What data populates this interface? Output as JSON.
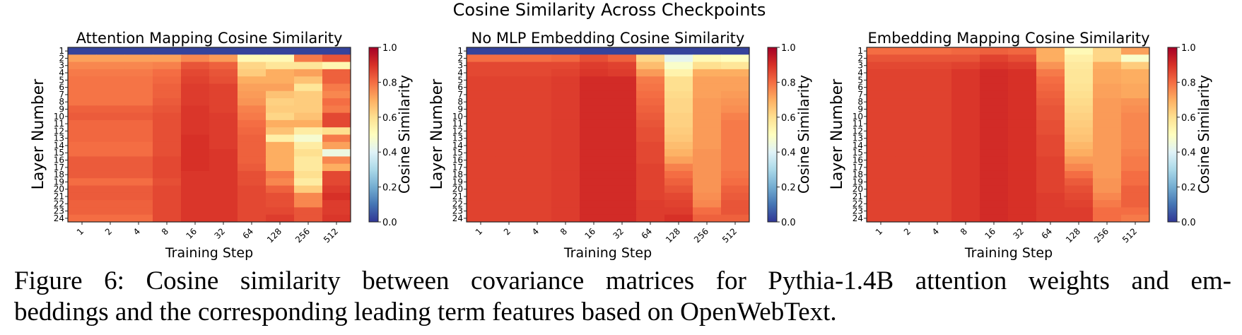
{
  "figure_title": "Cosine Similarity Across Checkpoints",
  "caption": {
    "line1": "Figure 6: Cosine similarity between covariance matrices for Pythia-1.4B attention weights and em-",
    "line2": "beddings and the corresponding leading term features based on OpenWebText."
  },
  "chart_data": [
    {
      "type": "heatmap",
      "title": "Attention Mapping Cosine Similarity",
      "xlabel": "Training Step",
      "ylabel": "Layer Number",
      "colorbar_label": "Cosine Similarity",
      "colormap": "RdYlBu_r",
      "vmin": 0.0,
      "vmax": 1.0,
      "colorbar_ticks": [
        "0.0",
        "0.2",
        "0.4",
        "0.6",
        "0.8",
        "1.0"
      ],
      "x": [
        "1",
        "2",
        "4",
        "8",
        "16",
        "32",
        "64",
        "128",
        "256",
        "512"
      ],
      "y": [
        "1",
        "2",
        "3",
        "4",
        "5",
        "6",
        "7",
        "8",
        "9",
        "10",
        "11",
        "12",
        "13",
        "14",
        "15",
        "16",
        "17",
        "18",
        "19",
        "20",
        "21",
        "22",
        "23",
        "24"
      ],
      "z": [
        [
          0.02,
          0.02,
          0.02,
          0.02,
          0.02,
          0.02,
          0.02,
          0.02,
          0.02,
          0.02
        ],
        [
          0.72,
          0.72,
          0.72,
          0.72,
          0.76,
          0.73,
          0.52,
          0.52,
          0.78,
          0.84
        ],
        [
          0.76,
          0.76,
          0.76,
          0.77,
          0.84,
          0.82,
          0.62,
          0.58,
          0.58,
          0.53
        ],
        [
          0.78,
          0.78,
          0.78,
          0.8,
          0.86,
          0.84,
          0.64,
          0.7,
          0.72,
          0.82
        ],
        [
          0.79,
          0.79,
          0.79,
          0.81,
          0.87,
          0.85,
          0.7,
          0.7,
          0.66,
          0.82
        ],
        [
          0.79,
          0.79,
          0.79,
          0.82,
          0.88,
          0.87,
          0.72,
          0.72,
          0.58,
          0.78
        ],
        [
          0.79,
          0.79,
          0.79,
          0.82,
          0.88,
          0.87,
          0.73,
          0.66,
          0.64,
          0.76
        ],
        [
          0.79,
          0.79,
          0.79,
          0.83,
          0.88,
          0.87,
          0.74,
          0.63,
          0.64,
          0.8
        ],
        [
          0.82,
          0.82,
          0.82,
          0.84,
          0.89,
          0.87,
          0.77,
          0.64,
          0.64,
          0.78
        ],
        [
          0.83,
          0.83,
          0.83,
          0.85,
          0.89,
          0.88,
          0.78,
          0.62,
          0.66,
          0.86
        ],
        [
          0.81,
          0.81,
          0.81,
          0.85,
          0.89,
          0.88,
          0.8,
          0.7,
          0.7,
          0.86
        ],
        [
          0.81,
          0.81,
          0.81,
          0.85,
          0.89,
          0.88,
          0.81,
          0.66,
          0.56,
          0.6
        ],
        [
          0.81,
          0.81,
          0.81,
          0.85,
          0.9,
          0.88,
          0.82,
          0.55,
          0.47,
          0.78
        ],
        [
          0.8,
          0.8,
          0.8,
          0.85,
          0.9,
          0.88,
          0.82,
          0.7,
          0.56,
          0.72
        ],
        [
          0.8,
          0.8,
          0.8,
          0.85,
          0.9,
          0.89,
          0.82,
          0.7,
          0.6,
          0.44
        ],
        [
          0.83,
          0.83,
          0.83,
          0.86,
          0.9,
          0.89,
          0.82,
          0.7,
          0.57,
          0.76
        ],
        [
          0.83,
          0.83,
          0.83,
          0.86,
          0.9,
          0.89,
          0.83,
          0.7,
          0.57,
          0.7
        ],
        [
          0.83,
          0.83,
          0.83,
          0.86,
          0.89,
          0.89,
          0.85,
          0.78,
          0.6,
          0.86
        ],
        [
          0.8,
          0.8,
          0.8,
          0.85,
          0.89,
          0.89,
          0.85,
          0.76,
          0.56,
          0.86
        ],
        [
          0.83,
          0.83,
          0.83,
          0.86,
          0.89,
          0.89,
          0.86,
          0.82,
          0.64,
          0.88
        ],
        [
          0.83,
          0.83,
          0.83,
          0.86,
          0.89,
          0.89,
          0.86,
          0.85,
          0.76,
          0.9
        ],
        [
          0.82,
          0.82,
          0.82,
          0.86,
          0.89,
          0.89,
          0.86,
          0.85,
          0.76,
          0.88
        ],
        [
          0.82,
          0.82,
          0.82,
          0.86,
          0.89,
          0.89,
          0.86,
          0.86,
          0.84,
          0.88
        ],
        [
          0.8,
          0.8,
          0.8,
          0.86,
          0.89,
          0.89,
          0.86,
          0.88,
          0.84,
          0.89
        ]
      ]
    },
    {
      "type": "heatmap",
      "title": "No MLP Embedding Cosine Similarity",
      "xlabel": "Training Step",
      "ylabel": "Layer Number",
      "colorbar_label": "Cosine Similarity",
      "colormap": "RdYlBu_r",
      "vmin": 0.0,
      "vmax": 1.0,
      "colorbar_ticks": [
        "0.0",
        "0.2",
        "0.4",
        "0.6",
        "0.8",
        "1.0"
      ],
      "x": [
        "1",
        "2",
        "4",
        "8",
        "16",
        "32",
        "64",
        "128",
        "256",
        "512"
      ],
      "y": [
        "1",
        "2",
        "3",
        "4",
        "5",
        "6",
        "7",
        "8",
        "9",
        "10",
        "11",
        "12",
        "13",
        "14",
        "15",
        "16",
        "17",
        "18",
        "19",
        "20",
        "21",
        "22",
        "23",
        "24"
      ],
      "z": [
        [
          0.02,
          0.02,
          0.02,
          0.02,
          0.02,
          0.02,
          0.02,
          0.02,
          0.02,
          0.02
        ],
        [
          0.8,
          0.8,
          0.8,
          0.81,
          0.85,
          0.82,
          0.62,
          0.42,
          0.52,
          0.5
        ],
        [
          0.86,
          0.86,
          0.86,
          0.86,
          0.88,
          0.87,
          0.67,
          0.48,
          0.6,
          0.58
        ],
        [
          0.86,
          0.86,
          0.86,
          0.87,
          0.89,
          0.88,
          0.73,
          0.54,
          0.7,
          0.7
        ],
        [
          0.87,
          0.87,
          0.87,
          0.88,
          0.91,
          0.91,
          0.78,
          0.6,
          0.72,
          0.72
        ],
        [
          0.87,
          0.87,
          0.87,
          0.88,
          0.91,
          0.91,
          0.79,
          0.6,
          0.72,
          0.72
        ],
        [
          0.87,
          0.87,
          0.87,
          0.88,
          0.91,
          0.91,
          0.8,
          0.61,
          0.72,
          0.73
        ],
        [
          0.87,
          0.87,
          0.87,
          0.88,
          0.91,
          0.91,
          0.81,
          0.62,
          0.73,
          0.74
        ],
        [
          0.87,
          0.87,
          0.87,
          0.88,
          0.91,
          0.91,
          0.82,
          0.62,
          0.73,
          0.75
        ],
        [
          0.87,
          0.87,
          0.87,
          0.88,
          0.91,
          0.91,
          0.83,
          0.63,
          0.73,
          0.77
        ],
        [
          0.87,
          0.87,
          0.87,
          0.88,
          0.91,
          0.91,
          0.84,
          0.63,
          0.73,
          0.78
        ],
        [
          0.87,
          0.87,
          0.87,
          0.88,
          0.91,
          0.91,
          0.85,
          0.64,
          0.73,
          0.78
        ],
        [
          0.87,
          0.87,
          0.87,
          0.88,
          0.91,
          0.91,
          0.85,
          0.65,
          0.73,
          0.78
        ],
        [
          0.87,
          0.87,
          0.87,
          0.88,
          0.91,
          0.91,
          0.86,
          0.67,
          0.73,
          0.78
        ],
        [
          0.87,
          0.87,
          0.87,
          0.88,
          0.91,
          0.91,
          0.86,
          0.69,
          0.74,
          0.78
        ],
        [
          0.87,
          0.87,
          0.87,
          0.88,
          0.91,
          0.91,
          0.86,
          0.72,
          0.74,
          0.78
        ],
        [
          0.87,
          0.87,
          0.87,
          0.88,
          0.91,
          0.91,
          0.87,
          0.77,
          0.74,
          0.78
        ],
        [
          0.87,
          0.87,
          0.87,
          0.88,
          0.91,
          0.91,
          0.87,
          0.8,
          0.74,
          0.79
        ],
        [
          0.87,
          0.87,
          0.87,
          0.88,
          0.91,
          0.91,
          0.87,
          0.82,
          0.74,
          0.8
        ],
        [
          0.87,
          0.87,
          0.87,
          0.88,
          0.91,
          0.91,
          0.87,
          0.84,
          0.74,
          0.82
        ],
        [
          0.87,
          0.87,
          0.87,
          0.88,
          0.91,
          0.91,
          0.87,
          0.86,
          0.75,
          0.83
        ],
        [
          0.87,
          0.87,
          0.87,
          0.88,
          0.91,
          0.91,
          0.88,
          0.87,
          0.76,
          0.84
        ],
        [
          0.87,
          0.87,
          0.87,
          0.88,
          0.91,
          0.91,
          0.88,
          0.88,
          0.8,
          0.84
        ],
        [
          0.87,
          0.87,
          0.87,
          0.88,
          0.91,
          0.91,
          0.88,
          0.9,
          0.82,
          0.82
        ]
      ]
    },
    {
      "type": "heatmap",
      "title": "Embedding Mapping Cosine Similarity",
      "xlabel": "Training Step",
      "ylabel": "Layer Number",
      "colorbar_label": "Cosine Similarity",
      "colormap": "RdYlBu_r",
      "vmin": 0.0,
      "vmax": 1.0,
      "colorbar_ticks": [
        "0.0",
        "0.2",
        "0.4",
        "0.6",
        "0.8",
        "1.0"
      ],
      "x": [
        "1",
        "2",
        "4",
        "8",
        "16",
        "32",
        "64",
        "128",
        "256",
        "512"
      ],
      "y": [
        "1",
        "2",
        "3",
        "4",
        "5",
        "6",
        "7",
        "8",
        "9",
        "10",
        "11",
        "12",
        "13",
        "14",
        "15",
        "16",
        "17",
        "18",
        "19",
        "20",
        "21",
        "22",
        "23",
        "24"
      ],
      "z": [
        [
          0.8,
          0.8,
          0.8,
          0.81,
          0.82,
          0.81,
          0.7,
          0.52,
          0.62,
          0.72
        ],
        [
          0.84,
          0.84,
          0.84,
          0.84,
          0.87,
          0.85,
          0.7,
          0.55,
          0.62,
          0.48
        ],
        [
          0.86,
          0.86,
          0.86,
          0.87,
          0.89,
          0.88,
          0.74,
          0.57,
          0.7,
          0.64
        ],
        [
          0.87,
          0.87,
          0.87,
          0.89,
          0.91,
          0.9,
          0.78,
          0.58,
          0.71,
          0.7
        ],
        [
          0.87,
          0.87,
          0.87,
          0.89,
          0.91,
          0.9,
          0.8,
          0.58,
          0.71,
          0.7
        ],
        [
          0.87,
          0.87,
          0.87,
          0.89,
          0.91,
          0.9,
          0.81,
          0.59,
          0.72,
          0.71
        ],
        [
          0.87,
          0.87,
          0.87,
          0.89,
          0.91,
          0.9,
          0.82,
          0.6,
          0.72,
          0.71
        ],
        [
          0.87,
          0.87,
          0.87,
          0.89,
          0.91,
          0.9,
          0.83,
          0.61,
          0.73,
          0.74
        ],
        [
          0.87,
          0.87,
          0.87,
          0.89,
          0.91,
          0.9,
          0.84,
          0.62,
          0.73,
          0.75
        ],
        [
          0.87,
          0.87,
          0.87,
          0.89,
          0.91,
          0.9,
          0.84,
          0.63,
          0.73,
          0.76
        ],
        [
          0.87,
          0.87,
          0.87,
          0.89,
          0.91,
          0.9,
          0.85,
          0.64,
          0.73,
          0.76
        ],
        [
          0.87,
          0.87,
          0.87,
          0.89,
          0.91,
          0.9,
          0.85,
          0.65,
          0.73,
          0.76
        ],
        [
          0.87,
          0.87,
          0.87,
          0.89,
          0.91,
          0.9,
          0.86,
          0.66,
          0.73,
          0.76
        ],
        [
          0.87,
          0.87,
          0.87,
          0.89,
          0.91,
          0.9,
          0.86,
          0.68,
          0.73,
          0.76
        ],
        [
          0.87,
          0.87,
          0.87,
          0.89,
          0.91,
          0.9,
          0.86,
          0.7,
          0.73,
          0.77
        ],
        [
          0.87,
          0.87,
          0.87,
          0.89,
          0.91,
          0.9,
          0.87,
          0.73,
          0.73,
          0.78
        ],
        [
          0.87,
          0.87,
          0.87,
          0.89,
          0.91,
          0.9,
          0.87,
          0.76,
          0.73,
          0.78
        ],
        [
          0.87,
          0.87,
          0.87,
          0.89,
          0.91,
          0.9,
          0.87,
          0.8,
          0.73,
          0.8
        ],
        [
          0.87,
          0.87,
          0.87,
          0.89,
          0.91,
          0.9,
          0.87,
          0.83,
          0.74,
          0.8
        ],
        [
          0.87,
          0.87,
          0.87,
          0.89,
          0.91,
          0.9,
          0.87,
          0.85,
          0.74,
          0.82
        ],
        [
          0.87,
          0.87,
          0.87,
          0.89,
          0.91,
          0.9,
          0.88,
          0.86,
          0.76,
          0.82
        ],
        [
          0.87,
          0.87,
          0.87,
          0.89,
          0.91,
          0.9,
          0.88,
          0.87,
          0.78,
          0.82
        ],
        [
          0.87,
          0.87,
          0.87,
          0.89,
          0.91,
          0.9,
          0.88,
          0.88,
          0.8,
          0.8
        ],
        [
          0.87,
          0.87,
          0.87,
          0.89,
          0.91,
          0.9,
          0.88,
          0.88,
          0.8,
          0.78
        ]
      ]
    }
  ]
}
